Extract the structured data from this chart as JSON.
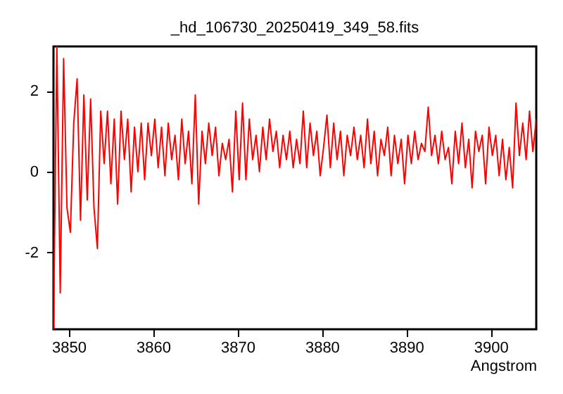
{
  "chart_data": {
    "type": "line",
    "title": "_hd_106730_20250419_349_58.fits",
    "xlabel": "Angstrom",
    "xlim": [
      3848.2,
      3905.4
    ],
    "ylim": [
      -3.9,
      3.1
    ],
    "xticks": [
      3850,
      3860,
      3870,
      3880,
      3890,
      3900
    ],
    "yticks": [
      -2,
      0,
      2
    ],
    "grid": false,
    "legend": false,
    "marker": "none",
    "line_style": "solid",
    "series": [
      {
        "color": "#ff0000",
        "x": [
          3848.2,
          3848.6,
          3849.0,
          3849.4,
          3849.8,
          3850.2,
          3850.6,
          3851.0,
          3851.4,
          3851.8,
          3852.2,
          3852.6,
          3853.0,
          3853.4,
          3853.8,
          3854.2,
          3854.6,
          3855.0,
          3855.4,
          3855.8,
          3856.2,
          3856.6,
          3857.0,
          3857.4,
          3857.8,
          3858.2,
          3858.6,
          3859.0,
          3859.4,
          3859.8,
          3860.2,
          3860.6,
          3861.0,
          3861.4,
          3861.8,
          3862.2,
          3862.6,
          3863.0,
          3863.4,
          3863.8,
          3864.2,
          3864.6,
          3865.0,
          3865.4,
          3865.8,
          3866.2,
          3866.6,
          3867.0,
          3867.4,
          3867.8,
          3868.2,
          3868.6,
          3869.0,
          3869.4,
          3869.8,
          3870.2,
          3870.6,
          3871.0,
          3871.4,
          3871.8,
          3872.2,
          3872.6,
          3873.0,
          3873.4,
          3873.8,
          3874.2,
          3874.6,
          3875.0,
          3875.4,
          3875.8,
          3876.2,
          3876.6,
          3877.0,
          3877.4,
          3877.8,
          3878.2,
          3878.6,
          3879.0,
          3879.4,
          3879.8,
          3880.2,
          3880.6,
          3881.0,
          3881.4,
          3881.8,
          3882.2,
          3882.6,
          3883.0,
          3883.4,
          3883.8,
          3884.2,
          3884.6,
          3885.0,
          3885.4,
          3885.8,
          3886.2,
          3886.6,
          3887.0,
          3887.4,
          3887.8,
          3888.2,
          3888.6,
          3889.0,
          3889.4,
          3889.8,
          3890.2,
          3890.6,
          3891.0,
          3891.4,
          3891.8,
          3892.2,
          3892.6,
          3893.0,
          3893.4,
          3893.8,
          3894.2,
          3894.6,
          3895.0,
          3895.4,
          3895.8,
          3896.2,
          3896.6,
          3897.0,
          3897.4,
          3897.8,
          3898.2,
          3898.6,
          3899.0,
          3899.4,
          3899.8,
          3900.2,
          3900.6,
          3901.0,
          3901.4,
          3901.8,
          3902.2,
          3902.6,
          3903.0,
          3903.4,
          3903.8,
          3904.2,
          3904.6,
          3905.0,
          3905.4
        ],
        "values": [
          -3.9,
          3.1,
          -3.0,
          2.8,
          -0.9,
          -1.5,
          1.2,
          2.3,
          -1.2,
          1.9,
          -0.7,
          1.8,
          -0.9,
          -1.9,
          1.5,
          0.2,
          1.5,
          -0.3,
          1.3,
          -0.8,
          1.5,
          0.3,
          1.3,
          -0.5,
          1.1,
          0.0,
          1.2,
          -0.2,
          1.2,
          0.4,
          1.3,
          0.1,
          1.1,
          -0.1,
          1.2,
          0.3,
          0.9,
          -0.2,
          1.3,
          0.2,
          1.0,
          -0.3,
          1.9,
          -0.8,
          1.0,
          0.2,
          1.2,
          0.4,
          1.1,
          -0.1,
          0.7,
          0.3,
          0.8,
          -0.5,
          1.5,
          -0.2,
          1.7,
          -0.2,
          1.3,
          0.3,
          0.9,
          0.0,
          1.1,
          0.3,
          1.3,
          0.5,
          1.0,
          0.1,
          0.9,
          0.3,
          1.0,
          0.1,
          0.8,
          0.2,
          1.5,
          0.1,
          1.2,
          0.4,
          1.0,
          -0.1,
          0.6,
          1.4,
          0.1,
          1.2,
          0.3,
          1.0,
          -0.1,
          0.9,
          0.4,
          1.1,
          0.3,
          0.9,
          0.1,
          1.3,
          0.2,
          1.0,
          -0.1,
          0.8,
          0.4,
          1.1,
          -0.1,
          0.9,
          0.2,
          0.8,
          -0.3,
          0.9,
          0.2,
          1.0,
          0.3,
          0.7,
          0.5,
          1.6,
          0.4,
          0.9,
          0.2,
          1.0,
          0.3,
          0.6,
          -0.3,
          1.0,
          0.2,
          1.2,
          0.1,
          0.8,
          -0.4,
          1.0,
          0.5,
          0.9,
          -0.3,
          1.1,
          0.4,
          0.9,
          -0.1,
          0.8,
          -0.2,
          0.6,
          -0.4,
          1.7,
          0.4,
          1.2,
          0.3,
          1.5,
          0.5,
          1.3
        ]
      }
    ]
  }
}
